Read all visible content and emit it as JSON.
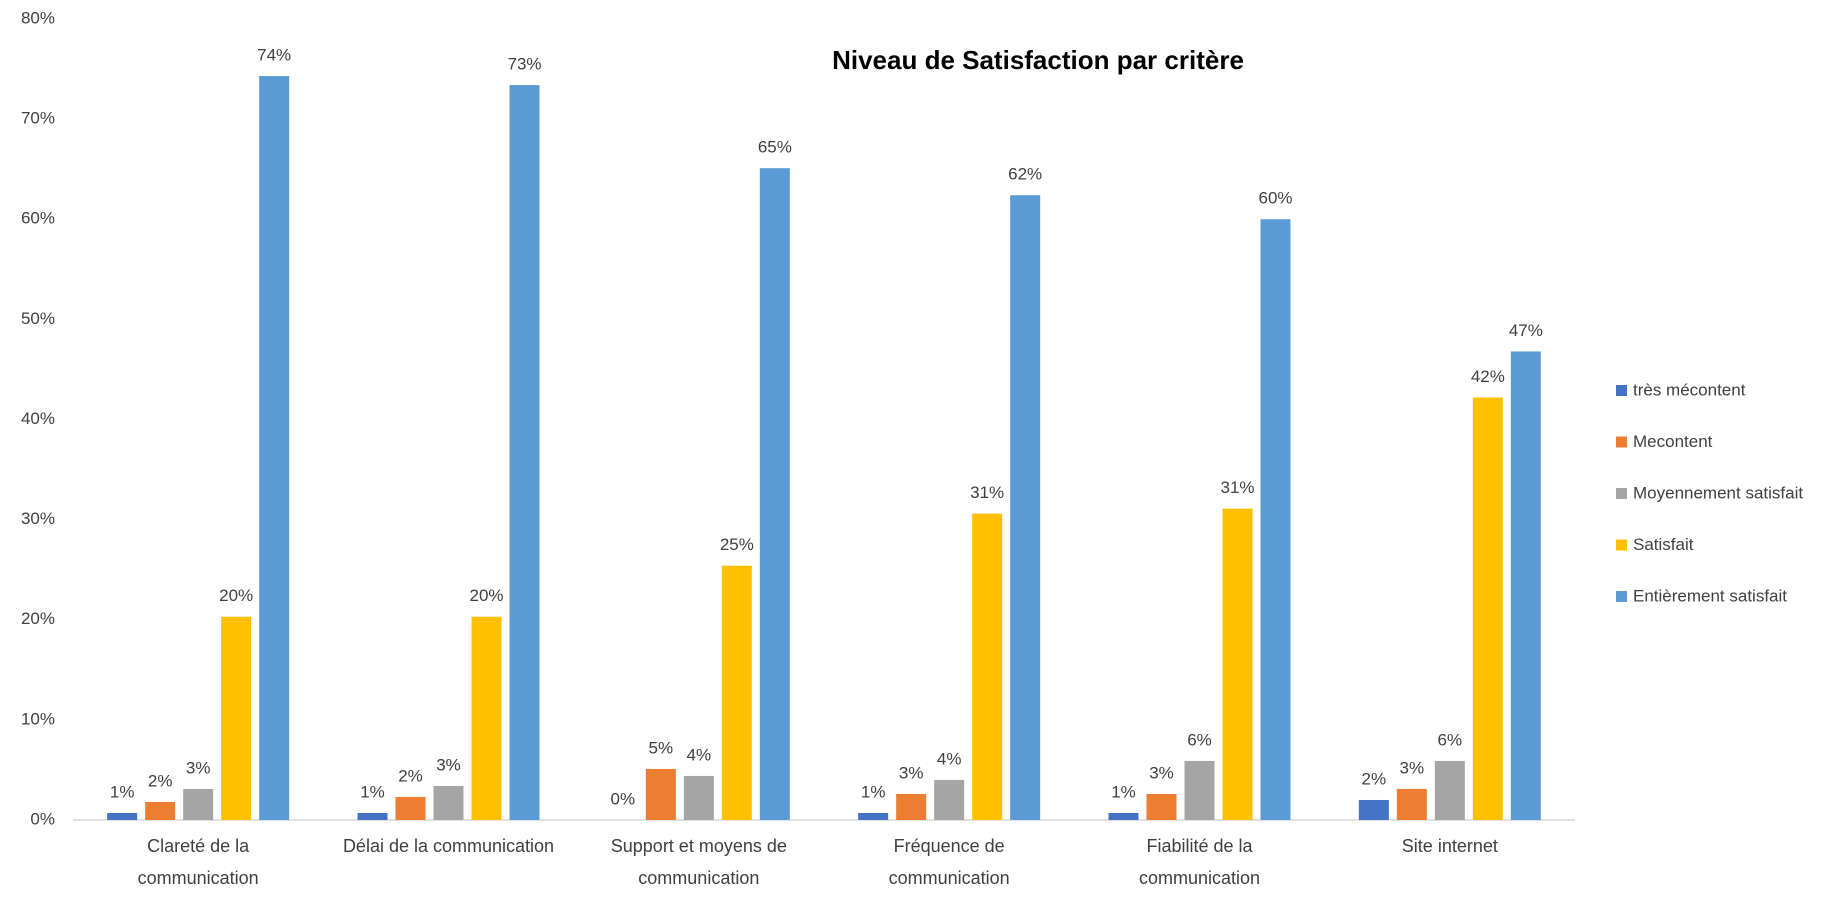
{
  "chart_data": {
    "type": "bar",
    "title": "Niveau de Satisfaction par critère",
    "categories": [
      "Clareté de la communication",
      "Délai de la communication",
      "Support et moyens de communication",
      "Fréquence de communication",
      "Fiabilité de la communication",
      "Site internet"
    ],
    "series": [
      {
        "name": "très mécontent",
        "color": "#4472c4",
        "values": [
          0.7,
          0.7,
          0,
          0.7,
          0.7,
          2.0
        ],
        "value_labels": [
          "1%",
          "1%",
          "0%",
          "1%",
          "1%",
          "2%"
        ]
      },
      {
        "name": "Mecontent",
        "color": "#ed7d31",
        "values": [
          1.8,
          2.3,
          5.1,
          2.6,
          2.6,
          3.1
        ],
        "value_labels": [
          "2%",
          "2%",
          "5%",
          "3%",
          "3%",
          "3%"
        ]
      },
      {
        "name": "Moyennement satisfait",
        "color": "#a5a5a5",
        "values": [
          3.1,
          3.4,
          4.4,
          4.0,
          5.9,
          5.9
        ],
        "value_labels": [
          "3%",
          "3%",
          "4%",
          "4%",
          "6%",
          "6%"
        ]
      },
      {
        "name": "Satisfait",
        "color": "#ffc000",
        "values": [
          20.3,
          20.3,
          25.4,
          30.6,
          31.1,
          42.2
        ],
        "value_labels": [
          "20%",
          "20%",
          "25%",
          "31%",
          "31%",
          "42%"
        ]
      },
      {
        "name": "Entièrement satisfait",
        "color": "#5b9bd5",
        "values": [
          74.3,
          73.4,
          65.1,
          62.4,
          60.0,
          46.8
        ],
        "value_labels": [
          "74%",
          "73%",
          "65%",
          "62%",
          "60%",
          "47%"
        ]
      }
    ],
    "ylim": [
      0,
      80
    ],
    "yticks": [
      {
        "value": 0,
        "label": "0%"
      },
      {
        "value": 10,
        "label": "10%"
      },
      {
        "value": 20,
        "label": "20%"
      },
      {
        "value": 30,
        "label": "30%"
      },
      {
        "value": 40,
        "label": "40%"
      },
      {
        "value": 50,
        "label": "50%"
      },
      {
        "value": 60,
        "label": "60%"
      },
      {
        "value": 70,
        "label": "70%"
      },
      {
        "value": 80,
        "label": "80%"
      }
    ],
    "grid": false,
    "legend": "right"
  }
}
